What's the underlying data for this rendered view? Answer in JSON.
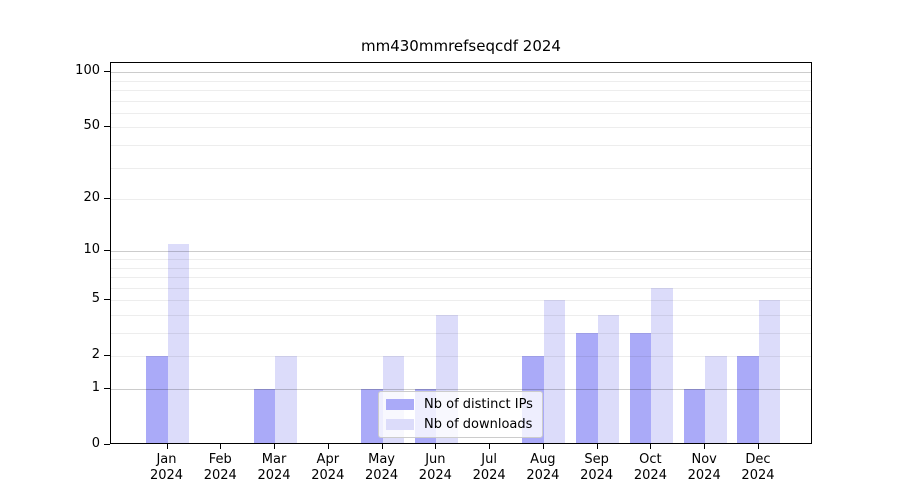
{
  "chart_data": {
    "type": "bar",
    "title": "mm430mmrefseqcdf 2024",
    "categories": [
      "Jan",
      "Feb",
      "Mar",
      "Apr",
      "May",
      "Jun",
      "Jul",
      "Aug",
      "Sep",
      "Oct",
      "Nov",
      "Dec"
    ],
    "year_label": "2024",
    "series": [
      {
        "name": "Nb of distinct IPs",
        "color": "#aaaaf8",
        "values": [
          2,
          0,
          1,
          0,
          1,
          1,
          0,
          2,
          3,
          3,
          1,
          2
        ]
      },
      {
        "name": "Nb of downloads",
        "color": "#dcdcfa",
        "values": [
          11,
          0,
          2,
          0,
          2,
          4,
          0,
          5,
          4,
          6,
          2,
          5
        ]
      }
    ],
    "y_ticks": [
      100,
      50,
      20,
      10,
      5,
      2,
      1,
      0
    ],
    "y_scale": "log10(1+y)",
    "ylim": [
      0,
      112
    ],
    "xlabel": "",
    "ylabel": "",
    "grid": "horizontal, minor + major (log decades)",
    "legend_position": "lower center"
  }
}
